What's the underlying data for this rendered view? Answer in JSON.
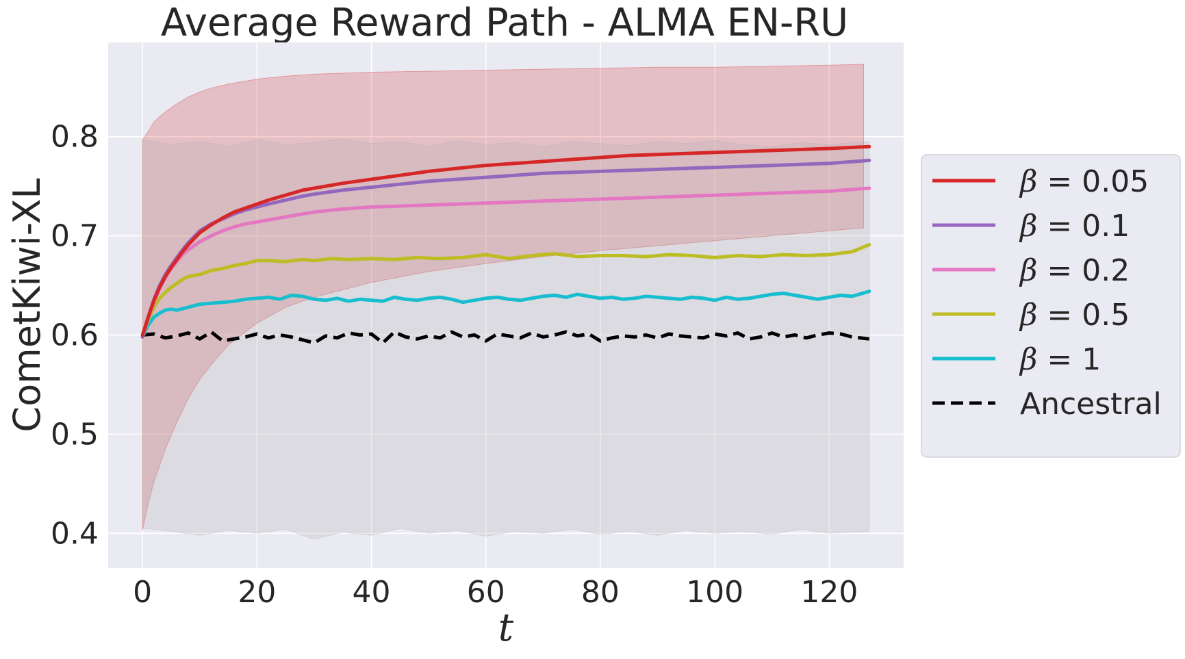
{
  "chart_data": {
    "type": "line",
    "title": "Average Reward Path - ALMA EN-RU",
    "xlabel": "t",
    "ylabel": "CometKiwi-XL",
    "xlim": [
      -6,
      133
    ],
    "ylim": [
      0.365,
      0.895
    ],
    "xticks": [
      0,
      20,
      40,
      60,
      80,
      100,
      120
    ],
    "yticks": [
      0.4,
      0.5,
      0.6,
      0.7,
      0.8
    ],
    "xtick_labels": [
      "0",
      "20",
      "40",
      "60",
      "80",
      "100",
      "120"
    ],
    "ytick_labels": [
      "0.4",
      "0.5",
      "0.6",
      "0.7",
      "0.8"
    ],
    "grid": true,
    "legend_position": "outside-right",
    "bands": [
      {
        "name": "β = 0.05 band",
        "color": "#d62728",
        "x": [
          0,
          1,
          2,
          4,
          6,
          8,
          10,
          12,
          15,
          20,
          25,
          30,
          40,
          50,
          60,
          70,
          80,
          90,
          100,
          110,
          120,
          126
        ],
        "upper": [
          0.797,
          0.805,
          0.815,
          0.825,
          0.833,
          0.84,
          0.845,
          0.849,
          0.853,
          0.858,
          0.861,
          0.863,
          0.865,
          0.866,
          0.867,
          0.868,
          0.869,
          0.87,
          0.87,
          0.871,
          0.872,
          0.873
        ],
        "lower": [
          0.403,
          0.43,
          0.452,
          0.485,
          0.512,
          0.536,
          0.555,
          0.57,
          0.59,
          0.612,
          0.628,
          0.638,
          0.653,
          0.664,
          0.672,
          0.679,
          0.685,
          0.69,
          0.695,
          0.7,
          0.705,
          0.708
        ]
      },
      {
        "name": "Ancestral band",
        "color": "#b0b0b0",
        "x": [
          0,
          5,
          10,
          15,
          20,
          25,
          30,
          35,
          40,
          45,
          50,
          55,
          60,
          65,
          70,
          75,
          80,
          85,
          90,
          95,
          100,
          105,
          110,
          115,
          120,
          127
        ],
        "upper": [
          0.797,
          0.792,
          0.795,
          0.79,
          0.797,
          0.792,
          0.794,
          0.798,
          0.793,
          0.795,
          0.79,
          0.796,
          0.792,
          0.794,
          0.79,
          0.795,
          0.793,
          0.791,
          0.795,
          0.793,
          0.796,
          0.792,
          0.79,
          0.794,
          0.792,
          0.795
        ],
        "lower": [
          0.405,
          0.402,
          0.398,
          0.403,
          0.4,
          0.404,
          0.394,
          0.401,
          0.398,
          0.405,
          0.4,
          0.403,
          0.397,
          0.402,
          0.4,
          0.404,
          0.399,
          0.402,
          0.398,
          0.403,
          0.4,
          0.402,
          0.399,
          0.404,
          0.4,
          0.402
        ]
      }
    ],
    "series": [
      {
        "name": "β = 0.05",
        "color": "#d62728",
        "style": "solid",
        "x": [
          0,
          1,
          2,
          3,
          4,
          5,
          6,
          7,
          8,
          9,
          10,
          12,
          14,
          16,
          18,
          20,
          22,
          25,
          28,
          30,
          35,
          40,
          45,
          50,
          55,
          60,
          65,
          70,
          75,
          80,
          85,
          90,
          95,
          100,
          105,
          110,
          115,
          120,
          127
        ],
        "y": [
          0.6,
          0.618,
          0.635,
          0.648,
          0.659,
          0.668,
          0.676,
          0.684,
          0.691,
          0.697,
          0.703,
          0.711,
          0.718,
          0.724,
          0.728,
          0.732,
          0.736,
          0.741,
          0.746,
          0.748,
          0.753,
          0.757,
          0.761,
          0.765,
          0.768,
          0.771,
          0.773,
          0.775,
          0.777,
          0.779,
          0.781,
          0.782,
          0.783,
          0.784,
          0.785,
          0.786,
          0.787,
          0.788,
          0.79
        ]
      },
      {
        "name": "β = 0.1",
        "color": "#9467bd",
        "style": "solid",
        "x": [
          0,
          1,
          2,
          3,
          4,
          5,
          6,
          7,
          8,
          9,
          10,
          12,
          14,
          16,
          18,
          20,
          22,
          25,
          28,
          30,
          35,
          40,
          45,
          50,
          55,
          60,
          65,
          70,
          75,
          80,
          85,
          90,
          95,
          100,
          105,
          110,
          115,
          120,
          127
        ],
        "y": [
          0.598,
          0.618,
          0.636,
          0.65,
          0.661,
          0.67,
          0.678,
          0.686,
          0.693,
          0.699,
          0.705,
          0.712,
          0.717,
          0.722,
          0.726,
          0.729,
          0.732,
          0.736,
          0.74,
          0.742,
          0.746,
          0.749,
          0.752,
          0.755,
          0.757,
          0.759,
          0.761,
          0.763,
          0.764,
          0.765,
          0.766,
          0.767,
          0.768,
          0.769,
          0.77,
          0.771,
          0.772,
          0.773,
          0.776
        ]
      },
      {
        "name": "β = 0.2",
        "color": "#e377c2",
        "style": "solid",
        "x": [
          0,
          1,
          2,
          3,
          4,
          5,
          6,
          7,
          8,
          9,
          10,
          12,
          14,
          16,
          18,
          20,
          22,
          25,
          28,
          30,
          35,
          40,
          45,
          50,
          55,
          60,
          65,
          70,
          75,
          80,
          85,
          90,
          95,
          100,
          105,
          110,
          115,
          120,
          127
        ],
        "y": [
          0.598,
          0.617,
          0.633,
          0.647,
          0.658,
          0.667,
          0.674,
          0.681,
          0.686,
          0.69,
          0.694,
          0.7,
          0.705,
          0.709,
          0.712,
          0.714,
          0.716,
          0.719,
          0.722,
          0.724,
          0.727,
          0.729,
          0.73,
          0.731,
          0.732,
          0.733,
          0.734,
          0.735,
          0.736,
          0.737,
          0.738,
          0.739,
          0.74,
          0.741,
          0.742,
          0.743,
          0.744,
          0.745,
          0.748
        ]
      },
      {
        "name": "β = 0.5",
        "color": "#bcbd22",
        "style": "solid",
        "x": [
          0,
          1,
          2,
          3,
          4,
          5,
          6,
          7,
          8,
          9,
          10,
          12,
          14,
          16,
          18,
          20,
          22,
          25,
          28,
          30,
          33,
          36,
          40,
          44,
          48,
          52,
          56,
          60,
          64,
          68,
          72,
          76,
          80,
          84,
          88,
          92,
          96,
          100,
          104,
          108,
          112,
          116,
          120,
          124,
          127
        ],
        "y": [
          0.598,
          0.615,
          0.628,
          0.637,
          0.643,
          0.648,
          0.652,
          0.656,
          0.659,
          0.66,
          0.661,
          0.665,
          0.667,
          0.67,
          0.672,
          0.675,
          0.675,
          0.674,
          0.676,
          0.675,
          0.677,
          0.676,
          0.677,
          0.676,
          0.678,
          0.677,
          0.678,
          0.681,
          0.677,
          0.68,
          0.682,
          0.679,
          0.68,
          0.68,
          0.679,
          0.681,
          0.68,
          0.678,
          0.68,
          0.679,
          0.681,
          0.68,
          0.681,
          0.684,
          0.691
        ]
      },
      {
        "name": "β = 1",
        "color": "#17becf",
        "style": "solid",
        "x": [
          0,
          1,
          2,
          3,
          4,
          5,
          6,
          8,
          10,
          12,
          14,
          16,
          18,
          20,
          22,
          24,
          26,
          28,
          30,
          32,
          34,
          36,
          38,
          40,
          42,
          44,
          46,
          48,
          50,
          52,
          54,
          56,
          58,
          60,
          62,
          64,
          66,
          68,
          70,
          72,
          74,
          76,
          78,
          80,
          82,
          84,
          86,
          88,
          90,
          92,
          94,
          96,
          98,
          100,
          102,
          104,
          106,
          108,
          110,
          112,
          114,
          116,
          118,
          120,
          122,
          124,
          127
        ],
        "y": [
          0.598,
          0.61,
          0.618,
          0.622,
          0.625,
          0.626,
          0.625,
          0.628,
          0.631,
          0.632,
          0.633,
          0.634,
          0.636,
          0.637,
          0.638,
          0.636,
          0.64,
          0.639,
          0.636,
          0.635,
          0.637,
          0.634,
          0.636,
          0.635,
          0.634,
          0.638,
          0.636,
          0.635,
          0.637,
          0.638,
          0.636,
          0.633,
          0.635,
          0.637,
          0.638,
          0.636,
          0.635,
          0.637,
          0.639,
          0.64,
          0.638,
          0.641,
          0.639,
          0.637,
          0.638,
          0.636,
          0.637,
          0.639,
          0.638,
          0.637,
          0.636,
          0.638,
          0.637,
          0.635,
          0.638,
          0.636,
          0.637,
          0.639,
          0.641,
          0.642,
          0.64,
          0.638,
          0.636,
          0.638,
          0.64,
          0.639,
          0.644
        ]
      },
      {
        "name": "Ancestral",
        "color": "#000000",
        "style": "dashed",
        "x": [
          0,
          2,
          4,
          6,
          8,
          10,
          12,
          14,
          16,
          18,
          20,
          22,
          24,
          26,
          28,
          30,
          32,
          34,
          36,
          38,
          40,
          42,
          44,
          46,
          48,
          50,
          52,
          54,
          56,
          58,
          60,
          62,
          64,
          66,
          68,
          70,
          72,
          74,
          76,
          78,
          80,
          82,
          84,
          86,
          88,
          90,
          92,
          94,
          96,
          98,
          100,
          102,
          104,
          106,
          108,
          110,
          112,
          114,
          116,
          118,
          120,
          122,
          124,
          127
        ],
        "y": [
          0.6,
          0.601,
          0.597,
          0.599,
          0.602,
          0.596,
          0.603,
          0.594,
          0.596,
          0.598,
          0.601,
          0.597,
          0.6,
          0.598,
          0.595,
          0.592,
          0.599,
          0.597,
          0.602,
          0.6,
          0.601,
          0.592,
          0.603,
          0.598,
          0.596,
          0.599,
          0.597,
          0.603,
          0.598,
          0.6,
          0.594,
          0.601,
          0.599,
          0.597,
          0.602,
          0.598,
          0.6,
          0.603,
          0.599,
          0.601,
          0.594,
          0.597,
          0.599,
          0.598,
          0.6,
          0.597,
          0.601,
          0.599,
          0.598,
          0.597,
          0.601,
          0.599,
          0.602,
          0.596,
          0.598,
          0.602,
          0.598,
          0.6,
          0.597,
          0.6,
          0.602,
          0.601,
          0.598,
          0.596
        ]
      }
    ]
  }
}
